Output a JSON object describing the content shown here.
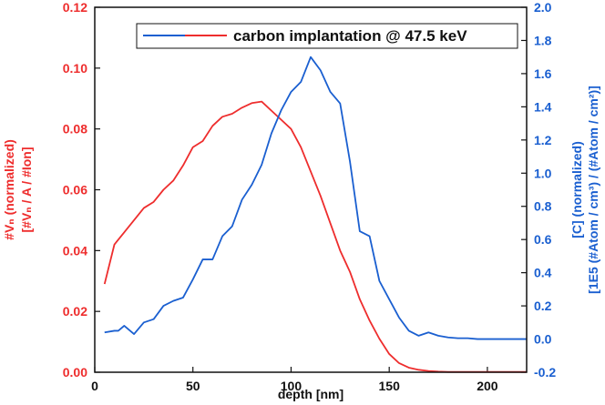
{
  "chart_data": {
    "type": "line",
    "legend": {
      "text": "carbon implantation @ 47.5 keV",
      "placement": "top-right"
    },
    "xlabel": "depth [nm]",
    "xlim": [
      0,
      220
    ],
    "xticks": [
      0,
      50,
      100,
      150,
      200
    ],
    "ylabel_left": {
      "line1": "#Vₙ (normalized)",
      "line2": "[#Vₙ / A / #Ion]"
    },
    "ylim_left": [
      0,
      0.12
    ],
    "yticks_left": [
      "0.00",
      "0.02",
      "0.04",
      "0.06",
      "0.08",
      "0.10",
      "0.12"
    ],
    "ylabel_right": {
      "line1": "[C] (normalized)",
      "line2": "[1E5 (#Atom / cm³) / (#Atom / cm²)]"
    },
    "ylim_right": [
      -0.2,
      2.0
    ],
    "yticks_right": [
      "-0.2",
      "0.0",
      "0.2",
      "0.4",
      "0.6",
      "0.8",
      "1.0",
      "1.2",
      "1.4",
      "1.6",
      "1.8",
      "2.0"
    ],
    "grid": false,
    "series": [
      {
        "axis": "left",
        "color": "#ee2d2d",
        "x": [
          5,
          10,
          15,
          20,
          25,
          30,
          35,
          40,
          45,
          50,
          55,
          60,
          65,
          70,
          75,
          80,
          85,
          90,
          95,
          100,
          105,
          110,
          115,
          120,
          125,
          130,
          135,
          140,
          145,
          150,
          155,
          160,
          165,
          170,
          175,
          180,
          185,
          190,
          195,
          200,
          205,
          210,
          215,
          220
        ],
        "y": [
          0.029,
          0.042,
          0.046,
          0.05,
          0.054,
          0.056,
          0.06,
          0.063,
          0.068,
          0.074,
          0.076,
          0.081,
          0.084,
          0.085,
          0.087,
          0.0885,
          0.089,
          0.086,
          0.083,
          0.08,
          0.074,
          0.066,
          0.058,
          0.049,
          0.04,
          0.033,
          0.024,
          0.017,
          0.011,
          0.006,
          0.003,
          0.0015,
          0.0008,
          0.0004,
          0.0002,
          0.0001,
          0.0001,
          0.0001,
          0.0001,
          0.0001,
          0.0001,
          0.0001,
          0.0001,
          0.0001
        ]
      },
      {
        "axis": "right",
        "color": "#1a5fd0",
        "x": [
          5,
          10,
          12,
          15,
          20,
          25,
          30,
          35,
          40,
          45,
          50,
          55,
          60,
          65,
          70,
          75,
          80,
          85,
          90,
          95,
          100,
          105,
          110,
          115,
          120,
          125,
          130,
          135,
          140,
          145,
          150,
          155,
          160,
          165,
          170,
          175,
          180,
          185,
          190,
          195,
          200,
          210,
          220
        ],
        "y": [
          0.04,
          0.05,
          0.05,
          0.08,
          0.03,
          0.1,
          0.12,
          0.2,
          0.23,
          0.25,
          0.36,
          0.48,
          0.48,
          0.62,
          0.68,
          0.84,
          0.93,
          1.05,
          1.24,
          1.38,
          1.49,
          1.55,
          1.7,
          1.62,
          1.49,
          1.42,
          1.07,
          0.65,
          0.62,
          0.35,
          0.24,
          0.13,
          0.05,
          0.02,
          0.04,
          0.02,
          0.01,
          0.005,
          0.005,
          0.0,
          0.0,
          0.0,
          0.0
        ]
      }
    ]
  }
}
